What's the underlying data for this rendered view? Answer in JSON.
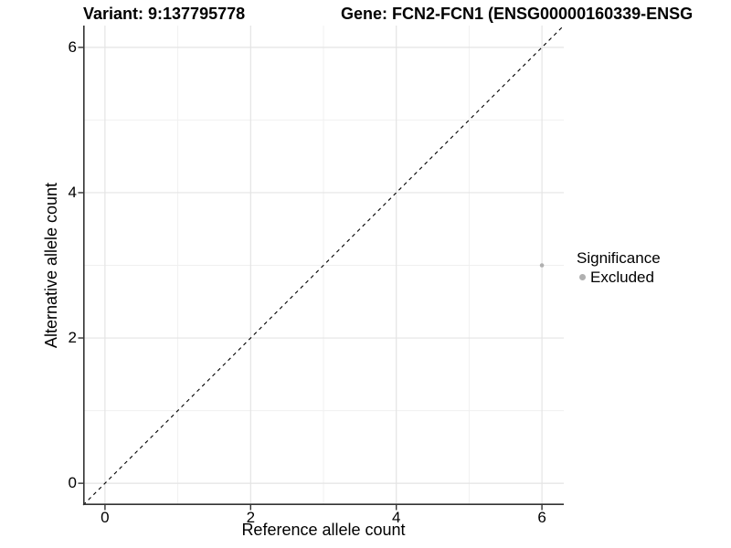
{
  "chart_data": {
    "type": "scatter",
    "title_left": "Variant: 9:137795778",
    "title_right": "Gene: FCN2-FCN1 (ENSG00000160339-ENSG",
    "xlabel": "Reference allele count",
    "ylabel": "Alternative allele count",
    "xlim": [
      -0.3,
      6.3
    ],
    "ylim": [
      -0.3,
      6.3
    ],
    "xticks": [
      0,
      2,
      4,
      6
    ],
    "yticks": [
      0,
      2,
      4,
      6
    ],
    "xticks_minor": [
      1,
      3,
      5
    ],
    "yticks_minor": [
      1,
      3,
      5
    ],
    "grid": "major+minor",
    "identity_line": {
      "style": "dashed",
      "equation": "y = x",
      "color": "#000000"
    },
    "series": [
      {
        "name": "Excluded",
        "color": "#b0b0b0",
        "points": [
          [
            6,
            3
          ]
        ]
      }
    ],
    "legend": {
      "title": "Significance",
      "position": "right",
      "entries": [
        {
          "label": "Excluded",
          "color": "#b0b0b0"
        }
      ]
    },
    "colors": {
      "axis": "#333333",
      "tick": "#333333",
      "grid_major": "#e4e4e4",
      "grid_minor": "#f0f0f0",
      "background": "#ffffff",
      "text": "#000000"
    }
  }
}
